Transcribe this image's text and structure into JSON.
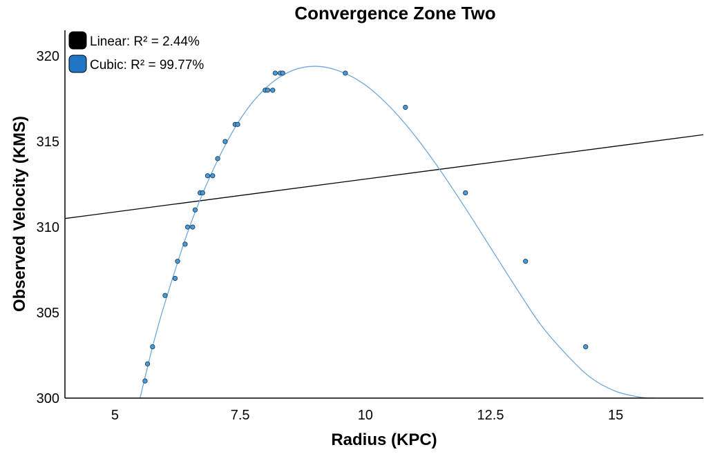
{
  "chart_data": {
    "type": "scatter",
    "title": "Convergence Zone Two",
    "xlabel": "Radius (KPC)",
    "ylabel": "Observed Velocity (KMS)",
    "xlim": [
      4.0,
      16.75
    ],
    "ylim": [
      300,
      321.5
    ],
    "xticks": [
      5,
      7.5,
      10,
      12.5,
      15
    ],
    "xtick_labels": [
      "5",
      "7.5",
      "10",
      "12.5",
      "15"
    ],
    "yticks": [
      300,
      305,
      310,
      315,
      320
    ],
    "ytick_labels": [
      "300",
      "305",
      "310",
      "315",
      "320"
    ],
    "grid": false,
    "legend_position": "top-left",
    "legend": [
      {
        "label": "Linear: R² = 2.44%",
        "color": "#000000"
      },
      {
        "label": "Cubic: R² = 99.77%",
        "color": "#1f77c4"
      }
    ],
    "series": [
      {
        "name": "Observed",
        "kind": "points",
        "color": "#4a9ad6",
        "points": [
          [
            5.6,
            301
          ],
          [
            5.65,
            302
          ],
          [
            5.75,
            303
          ],
          [
            6.0,
            306
          ],
          [
            6.2,
            307
          ],
          [
            6.25,
            308
          ],
          [
            6.4,
            309
          ],
          [
            6.45,
            310
          ],
          [
            6.55,
            310
          ],
          [
            6.6,
            311
          ],
          [
            6.7,
            312
          ],
          [
            6.75,
            312
          ],
          [
            6.85,
            313
          ],
          [
            6.95,
            313
          ],
          [
            7.05,
            314
          ],
          [
            7.2,
            315
          ],
          [
            7.4,
            316
          ],
          [
            7.45,
            316
          ],
          [
            8.0,
            318
          ],
          [
            8.05,
            318
          ],
          [
            8.15,
            318
          ],
          [
            8.2,
            319
          ],
          [
            8.3,
            319
          ],
          [
            8.35,
            319
          ],
          [
            9.6,
            319
          ],
          [
            10.8,
            317
          ],
          [
            12.0,
            312
          ],
          [
            13.2,
            308
          ],
          [
            14.4,
            303
          ]
        ]
      },
      {
        "name": "Linear",
        "kind": "line",
        "color": "#000000",
        "points": [
          [
            4.0,
            310.5
          ],
          [
            16.75,
            315.4
          ]
        ]
      },
      {
        "name": "Cubic",
        "kind": "curve",
        "color": "#6fa8dc",
        "points": [
          [
            5.5,
            300
          ],
          [
            5.75,
            303
          ],
          [
            6.0,
            305.6
          ],
          [
            6.5,
            310.1
          ],
          [
            7.0,
            313.6
          ],
          [
            7.5,
            316.3
          ],
          [
            8.0,
            318.1
          ],
          [
            8.5,
            319.1
          ],
          [
            9.0,
            319.4
          ],
          [
            9.5,
            319.1
          ],
          [
            10.0,
            318.3
          ],
          [
            10.5,
            317.0
          ],
          [
            11.0,
            315.3
          ],
          [
            11.5,
            313.3
          ],
          [
            12.0,
            311.1
          ],
          [
            12.5,
            308.8
          ],
          [
            13.0,
            306.5
          ],
          [
            13.5,
            304.3
          ],
          [
            14.0,
            302.6
          ],
          [
            14.5,
            301.2
          ],
          [
            15.0,
            300.4
          ],
          [
            15.5,
            300.05
          ],
          [
            15.8,
            300
          ]
        ]
      }
    ]
  }
}
